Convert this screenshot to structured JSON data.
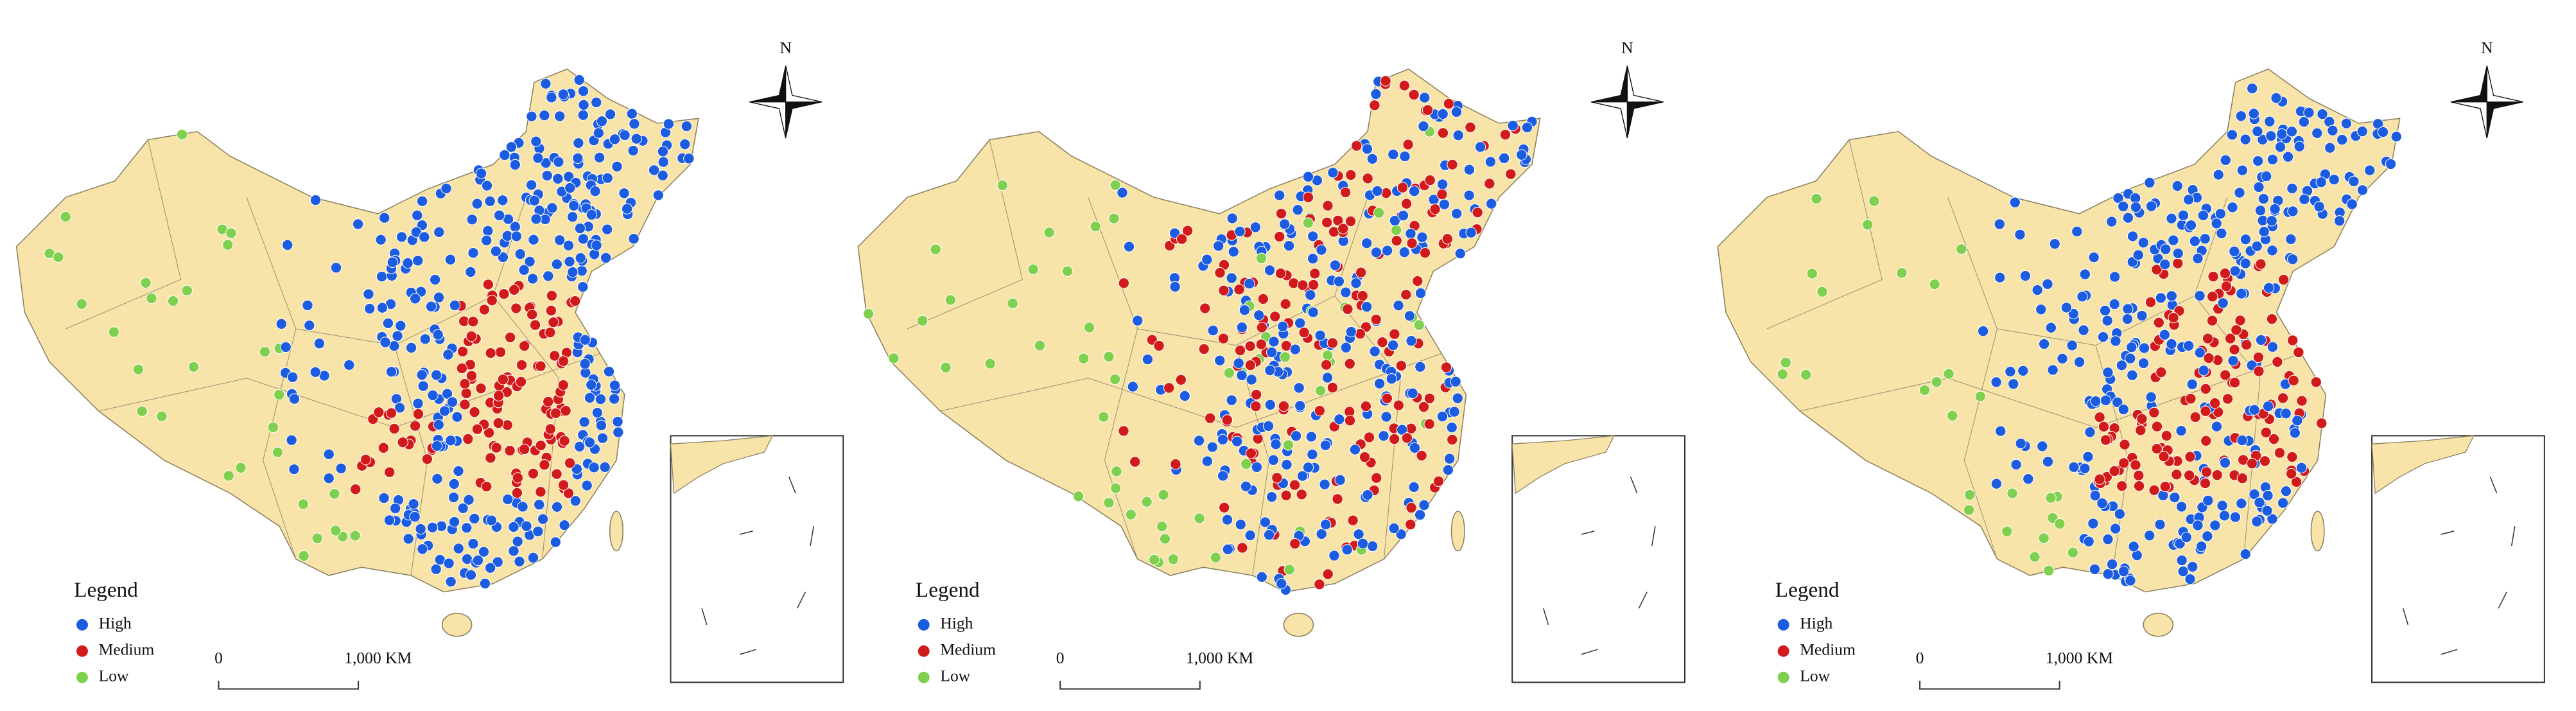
{
  "panels": [
    {
      "north": "N",
      "legend": {
        "title": "Legend",
        "items": [
          {
            "label": "High",
            "color": "#1c5ce0"
          },
          {
            "label": "Medium",
            "color": "#d11a1a"
          },
          {
            "label": "Low",
            "color": "#7fd04f"
          }
        ]
      },
      "scale": {
        "start": "0",
        "end": "1,000 KM"
      }
    },
    {
      "north": "N",
      "legend": {
        "title": "Legend",
        "items": [
          {
            "label": "High",
            "color": "#1c5ce0"
          },
          {
            "label": "Medium",
            "color": "#d11a1a"
          },
          {
            "label": "Low",
            "color": "#7fd04f"
          }
        ]
      },
      "scale": {
        "start": "0",
        "end": "1,000 KM"
      }
    },
    {
      "north": "N",
      "legend": {
        "title": "Legend",
        "items": [
          {
            "label": "High",
            "color": "#1c5ce0"
          },
          {
            "label": "Medium",
            "color": "#d11a1a"
          },
          {
            "label": "Low",
            "color": "#7fd04f"
          }
        ]
      },
      "scale": {
        "start": "0",
        "end": "1,000 KM"
      }
    }
  ]
}
